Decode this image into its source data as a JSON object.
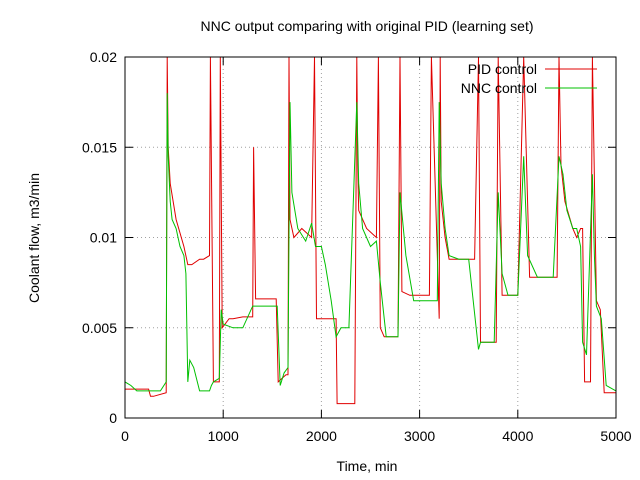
{
  "chart_data": {
    "type": "line",
    "title": "NNC output comparing with original PID (learning set)",
    "xlabel": "Time, min",
    "ylabel": "Coolant flow, m3/min",
    "xlim": [
      0,
      5000
    ],
    "ylim": [
      0,
      0.02
    ],
    "x_ticks": [
      0,
      1000,
      2000,
      3000,
      4000,
      5000
    ],
    "x_tick_labels": [
      "0",
      "1000",
      "2000",
      "3000",
      "4000",
      "5000"
    ],
    "y_ticks": [
      0,
      0.005,
      0.01,
      0.015,
      0.02
    ],
    "y_tick_labels": [
      "0",
      "0.005",
      "0.01",
      "0.015",
      "0.02"
    ],
    "grid": true,
    "legend": "top-right",
    "series": [
      {
        "name": "PID control",
        "color": "#e00000",
        "x": [
          0,
          60,
          160,
          240,
          260,
          290,
          420,
          430,
          440,
          460,
          520,
          600,
          640,
          680,
          760,
          800,
          860,
          870,
          900,
          960,
          970,
          990,
          1060,
          1100,
          1200,
          1260,
          1300,
          1310,
          1330,
          1440,
          1540,
          1560,
          1600,
          1640,
          1660,
          1670,
          1680,
          1720,
          1800,
          1900,
          1930,
          1950,
          2060,
          2120,
          2150,
          2160,
          2200,
          2300,
          2340,
          2360,
          2370,
          2380,
          2460,
          2560,
          2580,
          2600,
          2640,
          2680,
          2780,
          2800,
          2820,
          2900,
          2960,
          3000,
          3100,
          3120,
          3200,
          3210,
          3220,
          3260,
          3300,
          3400,
          3440,
          3560,
          3600,
          3620,
          3660,
          3700,
          3740,
          3780,
          3800,
          3840,
          3900,
          3960,
          4000,
          4060,
          4120,
          4200,
          4240,
          4340,
          4400,
          4420,
          4440,
          4480,
          4560,
          4600,
          4640,
          4660,
          4680,
          4740,
          4760,
          4800,
          4840,
          4880,
          5000
        ],
        "y": [
          0.0016,
          0.0016,
          0.0016,
          0.0016,
          0.0012,
          0.0012,
          0.0014,
          0.02,
          0.015,
          0.013,
          0.011,
          0.0095,
          0.0085,
          0.0085,
          0.0088,
          0.0088,
          0.009,
          0.02,
          0.002,
          0.002,
          0.02,
          0.005,
          0.0055,
          0.0055,
          0.0056,
          0.0056,
          0.0056,
          0.015,
          0.0066,
          0.0066,
          0.0066,
          0.002,
          0.0022,
          0.0024,
          0.0024,
          0.02,
          0.011,
          0.01,
          0.0105,
          0.01,
          0.02,
          0.0055,
          0.0055,
          0.0055,
          0.0055,
          0.0008,
          0.0008,
          0.0008,
          0.0008,
          0.02,
          0.014,
          0.0115,
          0.0105,
          0.01,
          0.02,
          0.005,
          0.0045,
          0.0045,
          0.0045,
          0.02,
          0.007,
          0.0068,
          0.0068,
          0.0068,
          0.0068,
          0.02,
          0.0055,
          0.02,
          0.012,
          0.01,
          0.0088,
          0.0088,
          0.0088,
          0.0088,
          0.02,
          0.0042,
          0.0042,
          0.0042,
          0.0042,
          0.0042,
          0.02,
          0.0068,
          0.0068,
          0.0068,
          0.0068,
          0.02,
          0.0078,
          0.0078,
          0.0078,
          0.0078,
          0.0078,
          0.02,
          0.014,
          0.012,
          0.0105,
          0.01,
          0.0105,
          0.0105,
          0.002,
          0.002,
          0.02,
          0.0065,
          0.006,
          0.0014,
          0.0014
        ]
      },
      {
        "name": "NNC control",
        "color": "#00c000",
        "x": [
          0,
          60,
          120,
          200,
          260,
          300,
          360,
          420,
          430,
          440,
          460,
          480,
          520,
          560,
          600,
          620,
          640,
          660,
          700,
          760,
          800,
          860,
          880,
          900,
          960,
          980,
          1000,
          1100,
          1200,
          1300,
          1320,
          1400,
          1500,
          1550,
          1580,
          1620,
          1660,
          1680,
          1700,
          1760,
          1840,
          1900,
          1940,
          2000,
          2040,
          2100,
          2150,
          2200,
          2280,
          2360,
          2380,
          2420,
          2500,
          2560,
          2600,
          2660,
          2720,
          2780,
          2800,
          2860,
          2940,
          3000,
          3100,
          3140,
          3180,
          3200,
          3220,
          3260,
          3300,
          3400,
          3440,
          3500,
          3600,
          3620,
          3700,
          3760,
          3800,
          3840,
          3900,
          3960,
          4000,
          4060,
          4100,
          4200,
          4300,
          4360,
          4420,
          4460,
          4500,
          4560,
          4600,
          4640,
          4660,
          4700,
          4760,
          4780,
          4800,
          4850,
          4900,
          5000
        ],
        "y": [
          0.002,
          0.0018,
          0.0015,
          0.0015,
          0.0015,
          0.0015,
          0.0015,
          0.002,
          0.018,
          0.0145,
          0.012,
          0.011,
          0.0105,
          0.0095,
          0.009,
          0.008,
          0.002,
          0.0032,
          0.0028,
          0.0015,
          0.0015,
          0.0015,
          0.0018,
          0.002,
          0.0022,
          0.006,
          0.0052,
          0.005,
          0.005,
          0.0062,
          0.0062,
          0.0062,
          0.0062,
          0.0062,
          0.0018,
          0.0025,
          0.0028,
          0.0175,
          0.0125,
          0.0105,
          0.0098,
          0.0108,
          0.0095,
          0.0095,
          0.0085,
          0.0065,
          0.0045,
          0.005,
          0.005,
          0.0175,
          0.013,
          0.0105,
          0.0095,
          0.0098,
          0.0075,
          0.0045,
          0.0045,
          0.0045,
          0.0125,
          0.009,
          0.0065,
          0.0065,
          0.0065,
          0.0065,
          0.0065,
          0.0175,
          0.013,
          0.0105,
          0.009,
          0.0088,
          0.0088,
          0.0088,
          0.0038,
          0.0042,
          0.0042,
          0.0042,
          0.0125,
          0.008,
          0.0068,
          0.0068,
          0.0068,
          0.0145,
          0.009,
          0.0078,
          0.0078,
          0.0078,
          0.0145,
          0.0135,
          0.0115,
          0.0105,
          0.0105,
          0.0095,
          0.0042,
          0.0035,
          0.0135,
          0.009,
          0.0062,
          0.0055,
          0.0018,
          0.0015
        ]
      }
    ]
  }
}
